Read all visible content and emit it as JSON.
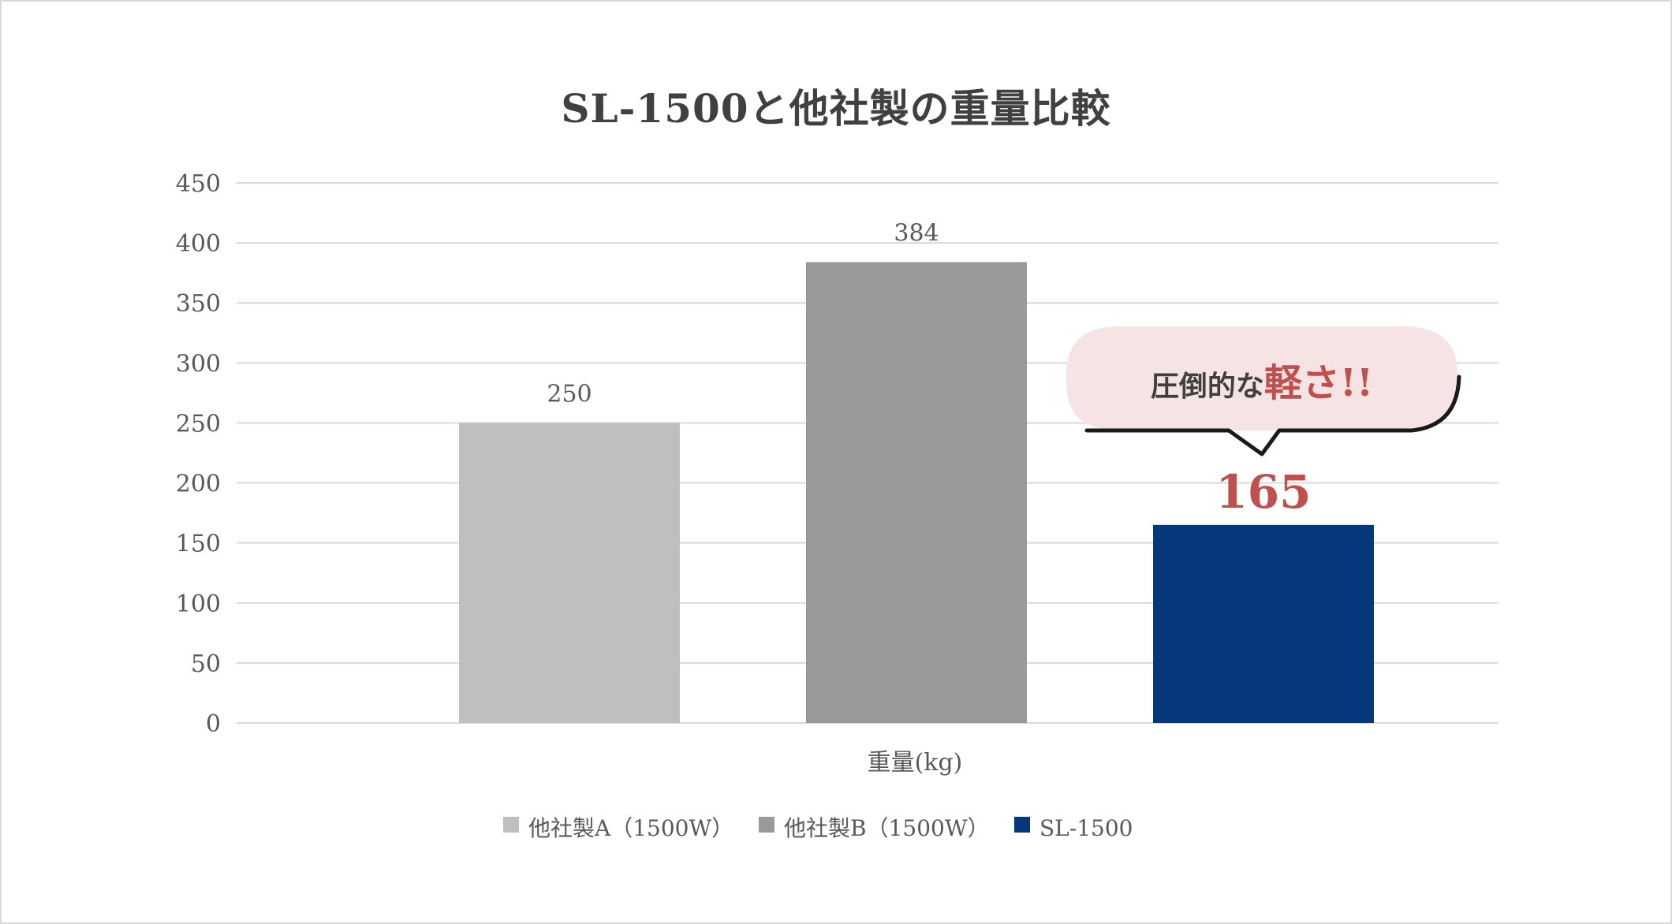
{
  "chart_data": {
    "type": "bar",
    "title": "SL-1500と他社製の重量比較",
    "xlabel": "重量(kg)",
    "ylabel": "",
    "ylim": [
      0,
      450
    ],
    "yticks": [
      0,
      50,
      100,
      150,
      200,
      250,
      300,
      350,
      400,
      450
    ],
    "grid": true,
    "legend_position": "bottom",
    "series": [
      {
        "name": "他社製A（1500W）",
        "values": [
          250
        ],
        "color": "#bfbfbf"
      },
      {
        "name": "他社製B（1500W）",
        "values": [
          384
        ],
        "color": "#999999"
      },
      {
        "name": "SL-1500",
        "values": [
          165
        ],
        "color": "#06377a"
      }
    ],
    "annotation": {
      "prefix": "圧倒的な",
      "emphasis": "軽さ!!",
      "target_series": "SL-1500"
    }
  }
}
